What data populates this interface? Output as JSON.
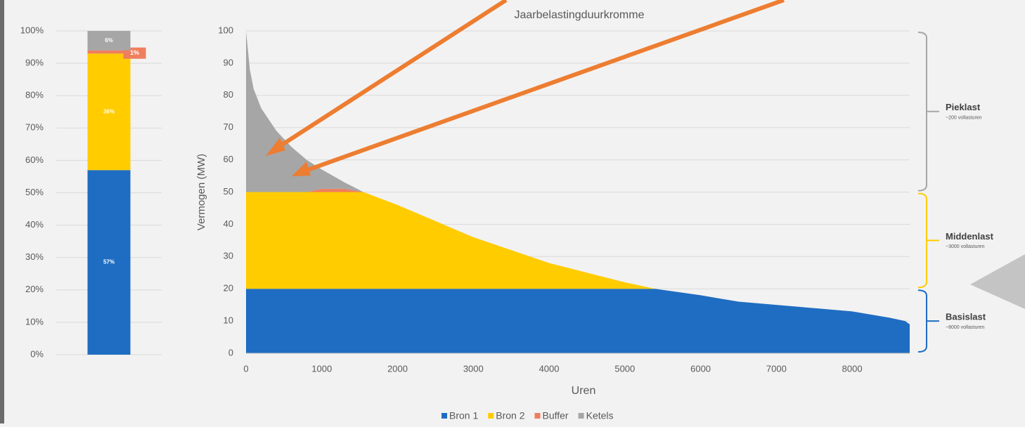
{
  "chart_data": [
    {
      "type": "stacked_bar",
      "categories": [
        null
      ],
      "series": [
        {
          "name": "Bron 1",
          "color": "#1f6dc2",
          "values": [
            57
          ],
          "value_labels": [
            "57%"
          ]
        },
        {
          "name": "Bron 2",
          "color": "#ffcc00",
          "values": [
            36
          ],
          "value_labels": [
            "36%"
          ]
        },
        {
          "name": "Buffer",
          "color": "#ef7e5e",
          "values": [
            1
          ],
          "value_labels": [
            "1%"
          ]
        },
        {
          "name": "Ketels",
          "color": "#a6a6a6",
          "values": [
            6
          ],
          "value_labels": [
            "6%"
          ]
        }
      ],
      "ylim": [
        0,
        100
      ],
      "yticks": [
        {
          "value": 0,
          "label": "0%"
        },
        {
          "value": 10,
          "label": "10%"
        },
        {
          "value": 20,
          "label": "20%"
        },
        {
          "value": 30,
          "label": "30%"
        },
        {
          "value": 40,
          "label": "40%"
        },
        {
          "value": 50,
          "label": "50%"
        },
        {
          "value": 60,
          "label": "60%"
        },
        {
          "value": 70,
          "label": "70%"
        },
        {
          "value": 80,
          "label": "80%"
        },
        {
          "value": 90,
          "label": "90%"
        },
        {
          "value": 100,
          "label": "100%"
        }
      ],
      "grid": true
    },
    {
      "type": "stacked_area",
      "title": "Jaarbelastingduurkromme",
      "x_label": "Uren",
      "y_label": "Vermogen (MW)",
      "x": [
        0,
        50,
        100,
        200,
        400,
        600,
        800,
        1000,
        1300,
        1550,
        2000,
        2500,
        3000,
        3500,
        4000,
        4500,
        5000,
        5400,
        6000,
        6500,
        7000,
        7500,
        8000,
        8500,
        8700,
        8760
      ],
      "series": [
        {
          "name": "Bron 1",
          "color": "#1f6dc2",
          "values": [
            20,
            20,
            20,
            20,
            20,
            20,
            20,
            20,
            20,
            20,
            20,
            20,
            20,
            20,
            20,
            20,
            20,
            20,
            18,
            16,
            15,
            14,
            13,
            11,
            10,
            9
          ]
        },
        {
          "name": "Bron 2",
          "color": "#ffcc00",
          "values": [
            30,
            30,
            30,
            30,
            30,
            30,
            30,
            30,
            30,
            30,
            26,
            21,
            16,
            12,
            8,
            5,
            2,
            0,
            0,
            0,
            0,
            0,
            0,
            0,
            0,
            0
          ]
        },
        {
          "name": "Buffer",
          "color": "#ef7e5e",
          "values": [
            0,
            0,
            0,
            0,
            0,
            0,
            0,
            1,
            1,
            0,
            0,
            0,
            0,
            0,
            0,
            0,
            0,
            0,
            0,
            0,
            0,
            0,
            0,
            0,
            0,
            0
          ]
        },
        {
          "name": "Ketels",
          "color": "#a6a6a6",
          "values": [
            50,
            38,
            32,
            26,
            19,
            14,
            10,
            6,
            2,
            0,
            0,
            0,
            0,
            0,
            0,
            0,
            0,
            0,
            0,
            0,
            0,
            0,
            0,
            0,
            0,
            0
          ]
        }
      ],
      "xlim": [
        0,
        8760
      ],
      "xticks": [
        0,
        1000,
        2000,
        3000,
        4000,
        5000,
        6000,
        7000,
        8000
      ],
      "ylim": [
        0,
        100
      ],
      "yticks": [
        0,
        10,
        20,
        30,
        40,
        50,
        60,
        70,
        80,
        90,
        100
      ],
      "grid": true,
      "legend": "bottom",
      "annotations": [
        {
          "text": "Pieklast",
          "subtext": "~200 vollasturen",
          "color": "#a6a6a6",
          "range": [
            50,
            100
          ]
        },
        {
          "text": "Middenlast",
          "subtext": "~3000 vollasturen",
          "color": "#ffcc00",
          "range": [
            20,
            50
          ]
        },
        {
          "text": "Basislast",
          "subtext": "~8000 vollasturen",
          "color": "#1f6dc2",
          "range": [
            0,
            20
          ]
        }
      ]
    }
  ]
}
